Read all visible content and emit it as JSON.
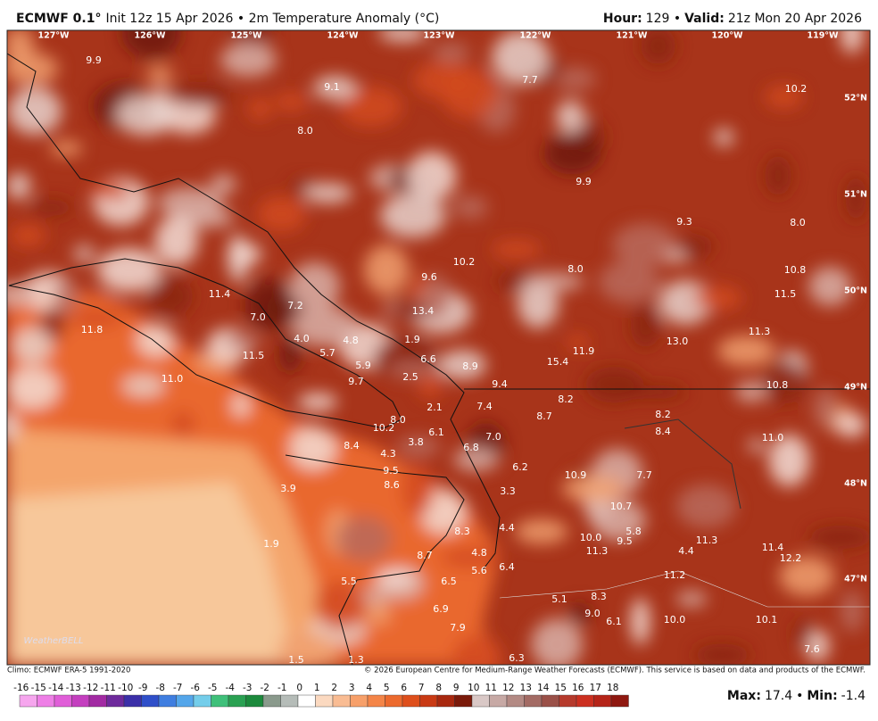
{
  "header": {
    "model": "ECMWF 0.1°",
    "subtitle": "Init 12z 15 Apr 2026 • 2m Temperature Anomaly (°C)",
    "hour_label": "Hour:",
    "hour": "129 •",
    "valid_label": "Valid:",
    "valid": "21z Mon 20 Apr 2026"
  },
  "map": {
    "longitudes": [
      "127°W",
      "126°W",
      "125°W",
      "124°W",
      "123°W",
      "122°W",
      "121°W",
      "120°W",
      "119°W"
    ],
    "latitudes": [
      "52°N",
      "51°N",
      "50°N",
      "49°N",
      "48°N",
      "47°N"
    ],
    "labels": [
      "9.9",
      "9.1",
      "7.7",
      "10.2",
      "8.0",
      "9.9",
      "9.3",
      "8.0",
      "10.2",
      "8.0",
      "10.8",
      "9.6",
      "11.4",
      "11.5",
      "7.2",
      "13.4",
      "7.0",
      "11.3",
      "11.8",
      "4.0",
      "4.8",
      "1.9",
      "13.0",
      "11.9",
      "11.5",
      "5.7",
      "6.6",
      "15.4",
      "5.9",
      "8.9",
      "11.0",
      "9.7",
      "2.5",
      "9.4",
      "10.8",
      "8.2",
      "2.1",
      "7.4",
      "8.2",
      "8.0",
      "8.7",
      "10.2",
      "6.1",
      "8.4",
      "3.8",
      "7.0",
      "11.0",
      "8.4",
      "6.8",
      "4.3",
      "6.2",
      "9.5",
      "10.9",
      "7.7",
      "8.6",
      "3.9",
      "3.3",
      "10.7",
      "5.8",
      "10.0",
      "9.5",
      "11.3",
      "1.9",
      "8.3",
      "4.4",
      "11.3",
      "4.4",
      "11.4",
      "12.2",
      "4.8",
      "8.7",
      "5.6",
      "6.4",
      "11.2",
      "6.5",
      "5.5",
      "8.3",
      "5.1",
      "6.9",
      "9.0",
      "6.1",
      "10.0",
      "10.1",
      "7.9",
      "7.6",
      "1.5",
      "1.3",
      "6.3"
    ],
    "logo": "WeatherBELL"
  },
  "footer": {
    "climo": "Climo: ECMWF ERA-5 1991-2020",
    "copyright": "© 2026 European Centre for Medium-Range Weather Forecasts (ECMWF). This service is based on data and products of the ECMWF."
  },
  "colorbar": {
    "ticks": [
      -16,
      -15,
      -14,
      -13,
      -12,
      -11,
      -10,
      -9,
      -8,
      -7,
      -6,
      -5,
      -4,
      -3,
      -2,
      -1,
      0,
      1,
      2,
      3,
      4,
      5,
      6,
      7,
      8,
      9,
      10,
      11,
      12,
      13,
      14,
      15,
      16,
      17,
      18
    ],
    "colors": [
      "#f6a6ee",
      "#ee7fe6",
      "#e05ed8",
      "#c43fbf",
      "#a22aa3",
      "#6e2a9c",
      "#3b2fa8",
      "#2f4fc9",
      "#3f7ee0",
      "#54a6ea",
      "#74cdea",
      "#3fc07a",
      "#2aa152",
      "#1c8a3c",
      "#8a9a8c",
      "#b5bcb8",
      "#ffffff",
      "#fbd9c0",
      "#f9bc93",
      "#f7a06a",
      "#f48548",
      "#ec6a2e",
      "#de4f1c",
      "#c93a14",
      "#a8280f",
      "#7a1a0a",
      "#d9c8c6",
      "#c7a9a5",
      "#b38a84",
      "#a36b64",
      "#9a5048",
      "#b63a2c",
      "#cc3020",
      "#b52418",
      "#8f1810"
    ]
  },
  "stats": {
    "max_label": "Max:",
    "max": "17.4",
    "separator": "•",
    "min_label": "Min:",
    "min": "-1.4"
  }
}
